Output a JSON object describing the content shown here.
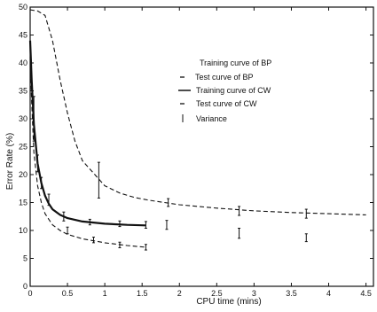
{
  "chart_data": {
    "type": "line",
    "title": "",
    "xlabel": "CPU time (mins)",
    "ylabel": "Error Rate (%)",
    "xlim": [
      0,
      4.6
    ],
    "ylim": [
      0,
      50
    ],
    "x_ticks": [
      0,
      0.5,
      1,
      1.5,
      2,
      2.5,
      3,
      3.5,
      4,
      4.5
    ],
    "y_ticks": [
      0,
      5,
      10,
      15,
      20,
      25,
      30,
      35,
      40,
      45,
      50
    ],
    "grid": false,
    "legend_position": "top-right",
    "legend": [
      {
        "label": "Training curve of BP",
        "style": "none"
      },
      {
        "label": "Test curve of BP",
        "style": "dash"
      },
      {
        "label": "Training curve of CW",
        "style": "solid"
      },
      {
        "label": "Test curve of CW",
        "style": "dash"
      },
      {
        "label": "Variance",
        "style": "errorbar"
      }
    ],
    "series": [
      {
        "name": "Test curve of BP",
        "style": "dashed",
        "x": [
          0,
          0.1,
          0.2,
          0.3,
          0.4,
          0.5,
          0.6,
          0.7,
          0.8,
          0.9,
          1.0,
          1.2,
          1.4,
          1.6,
          1.8,
          2.0,
          2.5,
          3.0,
          3.5,
          4.0,
          4.5
        ],
        "y": [
          49.5,
          49.3,
          48.5,
          44,
          37,
          31,
          26,
          22.5,
          21,
          19.5,
          18,
          16.7,
          15.9,
          15.4,
          15,
          14.6,
          14,
          13.5,
          13.2,
          13,
          12.8
        ]
      },
      {
        "name": "Training curve of CW",
        "style": "solid",
        "x": [
          0,
          0.02,
          0.05,
          0.1,
          0.15,
          0.2,
          0.25,
          0.3,
          0.4,
          0.5,
          0.7,
          1.0,
          1.3,
          1.55
        ],
        "y": [
          44,
          37,
          29,
          22,
          18.5,
          16.2,
          14.8,
          13.8,
          12.8,
          12.2,
          11.6,
          11.2,
          11.0,
          10.9
        ]
      },
      {
        "name": "Test curve of CW",
        "style": "dashed",
        "x": [
          0,
          0.02,
          0.05,
          0.1,
          0.15,
          0.2,
          0.25,
          0.3,
          0.4,
          0.5,
          0.7,
          1.0,
          1.3,
          1.55
        ],
        "y": [
          41,
          33,
          24,
          18,
          15,
          13,
          12,
          11,
          10,
          9.3,
          8.5,
          7.8,
          7.3,
          7
        ]
      }
    ],
    "variance_bars": [
      {
        "x": 0.05,
        "y": 30,
        "half": 4
      },
      {
        "x": 0.1,
        "y": 22,
        "half": 1.5
      },
      {
        "x": 0.15,
        "y": 18.5,
        "half": 1
      },
      {
        "x": 0.25,
        "y": 15.5,
        "half": 1
      },
      {
        "x": 0.45,
        "y": 12.5,
        "half": 0.8
      },
      {
        "x": 0.5,
        "y": 10,
        "half": 0.6
      },
      {
        "x": 0.8,
        "y": 11.5,
        "half": 0.5
      },
      {
        "x": 0.85,
        "y": 8.3,
        "half": 0.5
      },
      {
        "x": 1.2,
        "y": 11.2,
        "half": 0.5
      },
      {
        "x": 1.2,
        "y": 7.4,
        "half": 0.5
      },
      {
        "x": 1.55,
        "y": 11,
        "half": 0.6
      },
      {
        "x": 1.55,
        "y": 7,
        "half": 0.5
      },
      {
        "x": 0.92,
        "y": 19,
        "half": 3.2
      },
      {
        "x": 1.83,
        "y": 11,
        "half": 0.8
      },
      {
        "x": 1.85,
        "y": 15,
        "half": 0.7
      },
      {
        "x": 2.8,
        "y": 13.5,
        "half": 0.8
      },
      {
        "x": 2.8,
        "y": 9.5,
        "half": 0.9
      },
      {
        "x": 3.7,
        "y": 13,
        "half": 0.8
      },
      {
        "x": 3.7,
        "y": 8.7,
        "half": 0.7
      }
    ]
  }
}
